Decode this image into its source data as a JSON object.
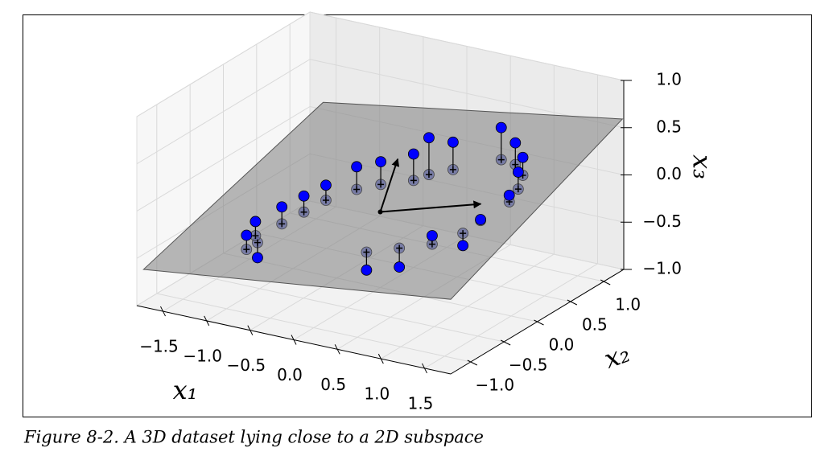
{
  "caption": "Figure 8-2. A 3D dataset lying close to a 2D subspace",
  "chart_data": {
    "type": "scatter3d",
    "xlabel": "x₁",
    "ylabel": "x₂",
    "zlabel": "x₃",
    "xlim": [
      -1.8,
      1.8
    ],
    "ylim": [
      -1.3,
      1.3
    ],
    "zlim": [
      -1,
      1
    ],
    "xticks": [
      {
        "value": -1.5,
        "label": "−1.5"
      },
      {
        "value": -1.0,
        "label": "−1.0"
      },
      {
        "value": -0.5,
        "label": "−0.5"
      },
      {
        "value": 0,
        "label": "0.0"
      },
      {
        "value": 0.5,
        "label": "0.5"
      },
      {
        "value": 1,
        "label": "1.0"
      },
      {
        "value": 1.5,
        "label": "1.5"
      }
    ],
    "yticks": [
      {
        "value": -1,
        "label": "−1.0"
      },
      {
        "value": -0.5,
        "label": "−0.5"
      },
      {
        "value": 0,
        "label": "0.0"
      },
      {
        "value": 0.5,
        "label": "0.5"
      },
      {
        "value": 1,
        "label": "1.0"
      }
    ],
    "zticks": [
      {
        "value": -1,
        "label": "−1.0"
      },
      {
        "value": -0.5,
        "label": "−0.5"
      },
      {
        "value": 0,
        "label": "0.0"
      },
      {
        "value": 0.5,
        "label": "0.5"
      },
      {
        "value": 1,
        "label": "1.0"
      }
    ],
    "grid": true,
    "plane": {
      "x": [
        -1.8,
        1.8,
        1.8,
        -1.8
      ],
      "y": [
        -1.2,
        -1.3,
        1.28,
        1.5
      ],
      "z": [
        -0.66,
        -0.21,
        0.6,
        -0.04
      ],
      "color": "#808080"
    },
    "points": {
      "color": "#0000ff",
      "x": [
        -1.0,
        -0.95,
        -1.05,
        -0.9,
        -0.8,
        -0.7,
        -0.5,
        -0.3,
        0.0,
        0.1,
        0.3,
        0.7,
        0.9,
        1.1,
        1.2,
        1.25,
        1.15,
        1.1,
        0.9,
        0.6,
        0.3
      ],
      "y": [
        -0.7,
        -0.6,
        -0.5,
        -0.3,
        -0.1,
        0.1,
        0.3,
        0.4,
        0.5,
        0.6,
        0.7,
        0.9,
        0.85,
        0.7,
        0.5,
        0.3,
        0.0,
        -0.2,
        -0.4,
        -0.5,
        -0.6
      ],
      "z": [
        -0.35,
        -0.62,
        -0.3,
        -0.2,
        -0.15,
        -0.1,
        0.05,
        0.1,
        0.2,
        0.35,
        0.3,
        0.45,
        0.35,
        0.3,
        0.25,
        0.1,
        -0.05,
        -0.25,
        -0.1,
        -0.45,
        -0.5
      ]
    },
    "projections": {
      "color": "#3a48c8",
      "x": [
        -1.0,
        -0.95,
        -1.05,
        -0.9,
        -0.8,
        -0.7,
        -0.5,
        -0.3,
        0.0,
        0.1,
        0.3,
        0.7,
        0.9,
        1.1,
        1.2,
        1.25,
        1.15,
        1.1,
        0.9,
        0.6,
        0.3
      ],
      "y": [
        -0.7,
        -0.6,
        -0.5,
        -0.3,
        -0.1,
        0.1,
        0.3,
        0.4,
        0.5,
        0.6,
        0.7,
        0.9,
        0.85,
        0.7,
        0.5,
        0.3,
        0.0,
        -0.2,
        -0.4,
        -0.5,
        -0.6
      ],
      "z": [
        -0.5,
        -0.46,
        -0.45,
        -0.38,
        -0.32,
        -0.26,
        -0.19,
        -0.14,
        -0.08,
        -0.04,
        0.01,
        0.11,
        0.12,
        0.11,
        0.07,
        0.03,
        -0.06,
        -0.12,
        -0.19,
        -0.25,
        -0.31
      ]
    },
    "vectors": {
      "origin": [
        0,
        0,
        -0.2
      ],
      "x": [
        0.2,
        1.0
      ],
      "y": [
        0.0,
        0.2
      ],
      "z": [
        0.4,
        0.0
      ]
    }
  }
}
